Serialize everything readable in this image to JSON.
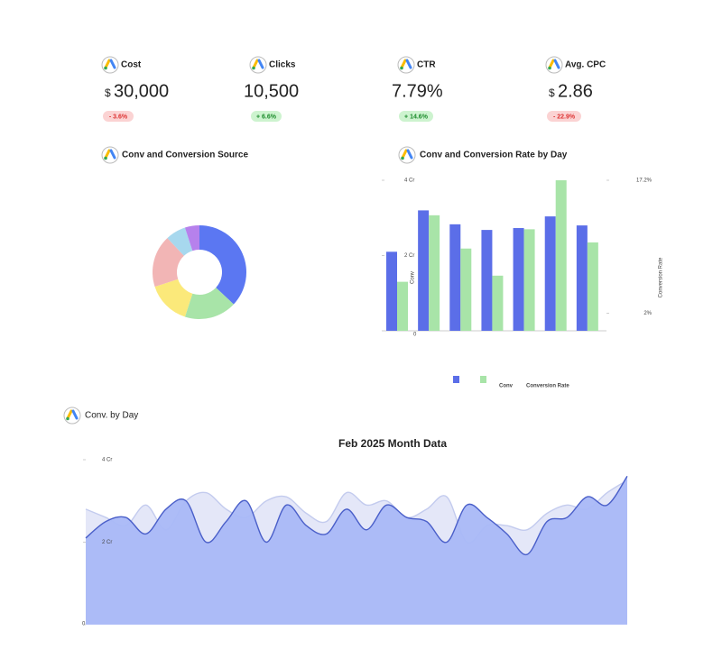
{
  "kpis": [
    {
      "label": "Cost",
      "prefix": "$",
      "value": "30,000",
      "change": "- 3.6%"
    },
    {
      "label": "Clicks",
      "value": "10,500",
      "change": "+ 6.6%"
    },
    {
      "label": "CTR",
      "value": "7.79%",
      "change": "+ 14.6%"
    },
    {
      "label": "Avg. CPC",
      "prefix": "$",
      "value": "2.86",
      "change": "- 22.9%"
    }
  ],
  "chart_data": [
    {
      "type": "pie",
      "title": "Conv and Conversion Source",
      "donut": true,
      "values": [
        37,
        18,
        15,
        18,
        7,
        5
      ],
      "colors": [
        "#5b77f2",
        "#a8e4a8",
        "#fbe97a",
        "#f2b5b5",
        "#a7d8ee",
        "#b681ec"
      ]
    },
    {
      "type": "bar",
      "title": "Conv and Conversion Rate by Day",
      "ylabel": "Conv",
      "y2label": "Conversion Rate",
      "ylim": [
        0,
        4
      ],
      "yticks": [
        0,
        {
          "value": 2,
          "label": "2 Cr"
        },
        {
          "value": 4,
          "label": "4 Cr"
        }
      ],
      "y2lim": [
        0,
        17.2
      ],
      "y2ticks": [
        {
          "value": 2,
          "label": "2%"
        },
        {
          "value": 17.2,
          "label": "17.2%"
        }
      ],
      "series": [
        {
          "name": "Conv",
          "color": "#5b6ee8",
          "values": [
            2.1,
            3.2,
            2.83,
            2.68,
            2.73,
            3.04,
            2.8
          ]
        },
        {
          "name": "Conversion Rate",
          "color": "#a8e4a8",
          "axis": "y2",
          "values": [
            5.6,
            13.2,
            9.4,
            6.3,
            11.6,
            17.2,
            10.1
          ]
        }
      ]
    },
    {
      "type": "area",
      "header": "Conv. by Day",
      "title": "Feb 2025 Month Data",
      "ylim": [
        0,
        4
      ],
      "yticks": [
        0,
        {
          "value": 2,
          "label": "2 Cr"
        },
        {
          "value": 4,
          "label": "4 Cr"
        }
      ],
      "series": [
        {
          "color": "#dfe3f7",
          "values": [
            2.8,
            2.6,
            2.4,
            2.9,
            2.3,
            3.0,
            3.2,
            2.8,
            2.6,
            3.0,
            3.1,
            2.7,
            2.5,
            3.2,
            2.9,
            3.0,
            2.6,
            2.8,
            3.1,
            2.0,
            2.4,
            2.4,
            2.3,
            2.7,
            2.9,
            2.8,
            3.2,
            3.5
          ]
        },
        {
          "color": "#a9b8f7",
          "values": [
            2.1,
            2.5,
            2.6,
            2.2,
            2.8,
            3.0,
            2.0,
            2.5,
            3.0,
            2.0,
            2.9,
            2.4,
            2.2,
            2.8,
            2.3,
            2.9,
            2.6,
            2.5,
            2.0,
            2.9,
            2.6,
            2.2,
            1.7,
            2.5,
            2.6,
            3.1,
            2.9,
            3.6
          ]
        }
      ]
    }
  ]
}
